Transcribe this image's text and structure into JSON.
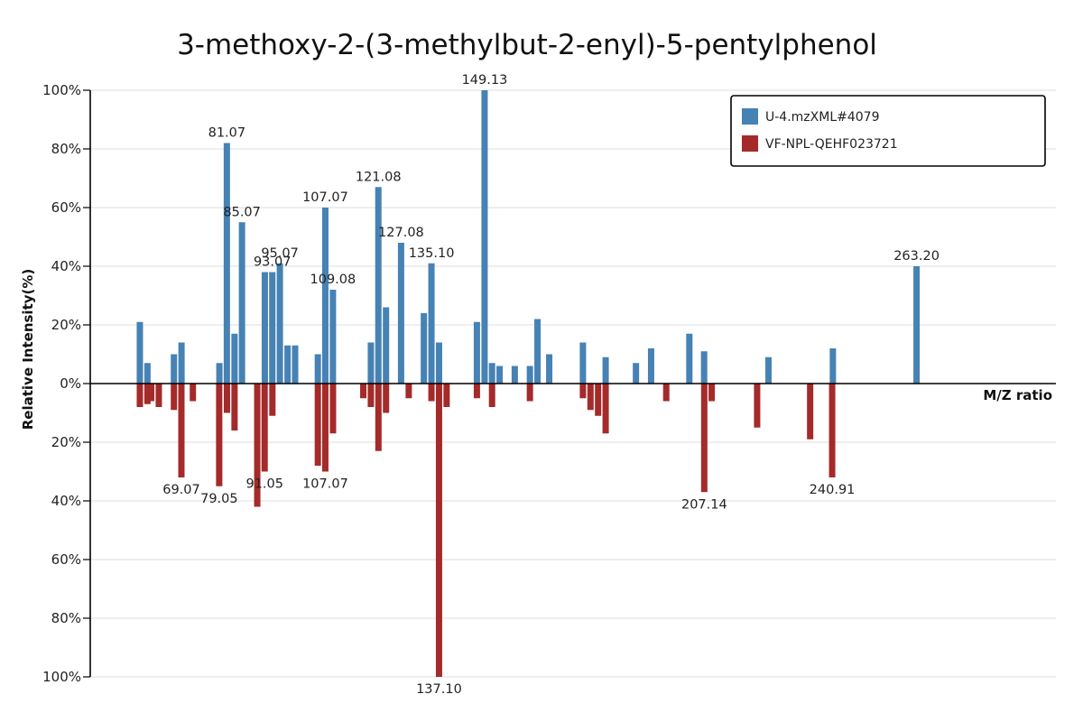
{
  "chart_data": {
    "type": "bar",
    "title": "3-methoxy-2-(3-methylbut-2-enyl)-5-pentylphenol",
    "xlabel": "M/Z ratio",
    "ylabel": "Relative Intensity(%)",
    "xlim": [
      45,
      300
    ],
    "ylim": [
      -100,
      100
    ],
    "y_ticks": [
      {
        "value": 100,
        "label": "100%"
      },
      {
        "value": 80,
        "label": "80%"
      },
      {
        "value": 60,
        "label": "60%"
      },
      {
        "value": 40,
        "label": "40%"
      },
      {
        "value": 20,
        "label": "20%"
      },
      {
        "value": 0,
        "label": "0%"
      },
      {
        "value": -20,
        "label": "20%"
      },
      {
        "value": -40,
        "label": "40%"
      },
      {
        "value": -60,
        "label": "60%"
      },
      {
        "value": -80,
        "label": "80%"
      },
      {
        "value": -100,
        "label": "100%"
      }
    ],
    "grid": true,
    "legend_position": "top-right",
    "series": [
      {
        "name": "U-4.mzXML#4079",
        "color": "#4682b4",
        "direction": "up",
        "points": [
          {
            "x": 58.1,
            "y": 21
          },
          {
            "x": 60.1,
            "y": 7
          },
          {
            "x": 67.1,
            "y": 10
          },
          {
            "x": 69.1,
            "y": 14
          },
          {
            "x": 79.1,
            "y": 7
          },
          {
            "x": 81.07,
            "y": 82,
            "label": "81.07"
          },
          {
            "x": 83.1,
            "y": 17
          },
          {
            "x": 85.07,
            "y": 55,
            "label": "85.07"
          },
          {
            "x": 91.1,
            "y": 38
          },
          {
            "x": 93.07,
            "y": 38,
            "label": "93.07"
          },
          {
            "x": 95.07,
            "y": 41,
            "label": "95.07"
          },
          {
            "x": 97.1,
            "y": 13
          },
          {
            "x": 99.1,
            "y": 13
          },
          {
            "x": 105.1,
            "y": 10
          },
          {
            "x": 107.07,
            "y": 60,
            "label": "107.07"
          },
          {
            "x": 109.08,
            "y": 32,
            "label": "109.08"
          },
          {
            "x": 119.1,
            "y": 14
          },
          {
            "x": 121.08,
            "y": 67,
            "label": "121.08"
          },
          {
            "x": 123.1,
            "y": 26
          },
          {
            "x": 127.08,
            "y": 48,
            "label": "127.08"
          },
          {
            "x": 133.1,
            "y": 24
          },
          {
            "x": 135.1,
            "y": 41,
            "label": "135.10"
          },
          {
            "x": 137.1,
            "y": 14
          },
          {
            "x": 147.1,
            "y": 21
          },
          {
            "x": 149.13,
            "y": 100,
            "label": "149.13"
          },
          {
            "x": 151.1,
            "y": 7
          },
          {
            "x": 153.1,
            "y": 6
          },
          {
            "x": 157.1,
            "y": 6
          },
          {
            "x": 161.1,
            "y": 6
          },
          {
            "x": 163.1,
            "y": 22
          },
          {
            "x": 166.2,
            "y": 10
          },
          {
            "x": 175.1,
            "y": 14
          },
          {
            "x": 181.1,
            "y": 9
          },
          {
            "x": 189.1,
            "y": 7
          },
          {
            "x": 193.1,
            "y": 12
          },
          {
            "x": 203.2,
            "y": 17
          },
          {
            "x": 207.1,
            "y": 11
          },
          {
            "x": 224.1,
            "y": 9
          },
          {
            "x": 241.1,
            "y": 12
          },
          {
            "x": 263.2,
            "y": 40,
            "label": "263.20"
          }
        ]
      },
      {
        "name": "VF-NPL-QEHF023721",
        "color": "#a52a2a",
        "direction": "down",
        "points": [
          {
            "x": 58.1,
            "y": 8
          },
          {
            "x": 60.1,
            "y": 7
          },
          {
            "x": 61.1,
            "y": 6
          },
          {
            "x": 63.1,
            "y": 8
          },
          {
            "x": 67.1,
            "y": 9
          },
          {
            "x": 69.07,
            "y": 32,
            "label": "69.07"
          },
          {
            "x": 72.1,
            "y": 6
          },
          {
            "x": 79.05,
            "y": 35,
            "label": "79.05"
          },
          {
            "x": 81.1,
            "y": 10
          },
          {
            "x": 83.1,
            "y": 16
          },
          {
            "x": 89.1,
            "y": 42
          },
          {
            "x": 91.05,
            "y": 30,
            "label": "91.05"
          },
          {
            "x": 93.1,
            "y": 11
          },
          {
            "x": 105.1,
            "y": 28
          },
          {
            "x": 107.07,
            "y": 30,
            "label": "107.07"
          },
          {
            "x": 109.1,
            "y": 17
          },
          {
            "x": 117.1,
            "y": 5
          },
          {
            "x": 119.1,
            "y": 8
          },
          {
            "x": 121.1,
            "y": 23
          },
          {
            "x": 123.1,
            "y": 10
          },
          {
            "x": 129.1,
            "y": 5
          },
          {
            "x": 135.1,
            "y": 6
          },
          {
            "x": 137.1,
            "y": 100,
            "label": "137.10"
          },
          {
            "x": 139.1,
            "y": 8
          },
          {
            "x": 147.1,
            "y": 5
          },
          {
            "x": 151.1,
            "y": 8
          },
          {
            "x": 161.1,
            "y": 6
          },
          {
            "x": 175.1,
            "y": 5
          },
          {
            "x": 177.1,
            "y": 9
          },
          {
            "x": 179.1,
            "y": 11
          },
          {
            "x": 181.1,
            "y": 17
          },
          {
            "x": 197.1,
            "y": 6
          },
          {
            "x": 207.14,
            "y": 37,
            "label": "207.14"
          },
          {
            "x": 209.1,
            "y": 6
          },
          {
            "x": 221.1,
            "y": 15
          },
          {
            "x": 235.1,
            "y": 19
          },
          {
            "x": 240.91,
            "y": 32,
            "label": "240.91"
          }
        ]
      }
    ]
  }
}
